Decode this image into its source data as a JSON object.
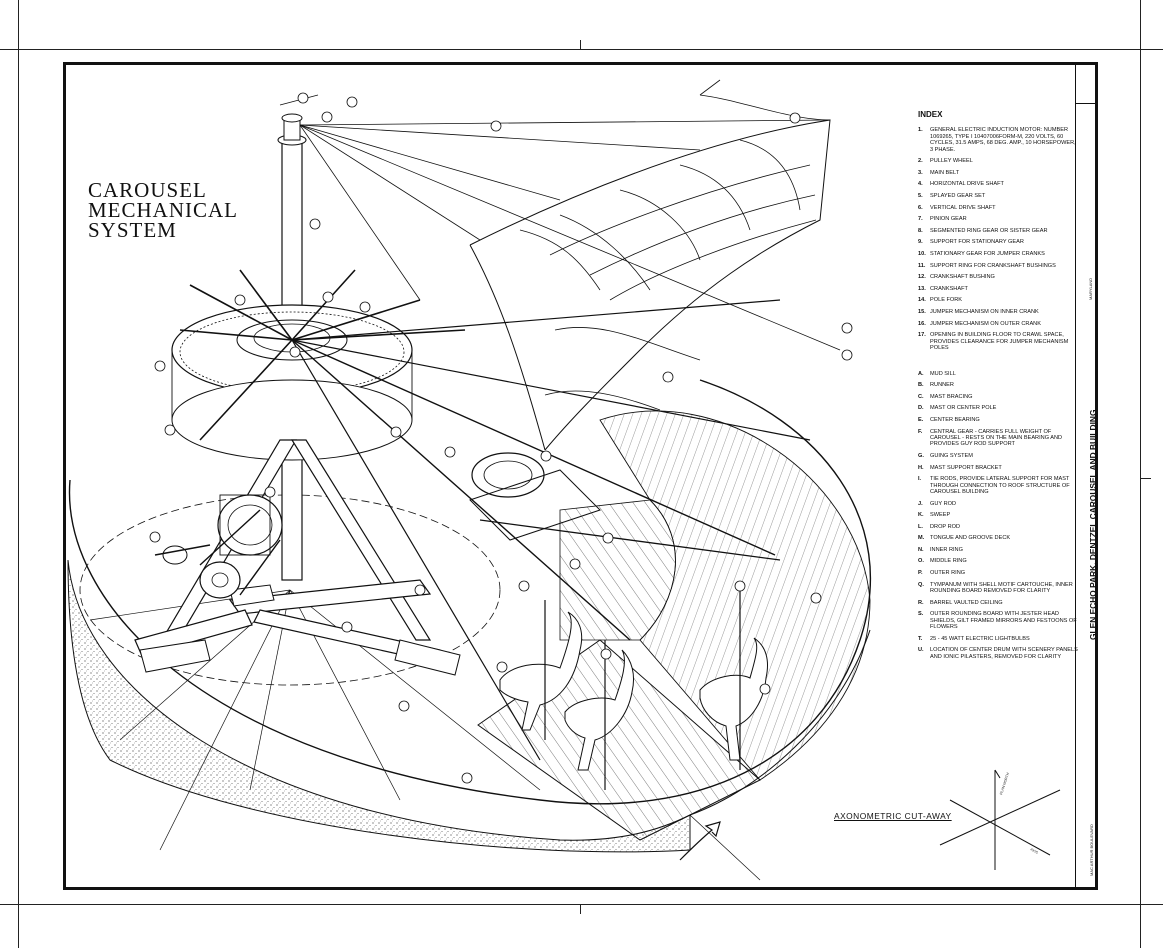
{
  "title": {
    "line1": "CAROUSEL",
    "line2": "MECHANICAL",
    "line3": "SYSTEM"
  },
  "index": {
    "heading": "INDEX",
    "numbered": [
      {
        "key": "1.",
        "text": "General electric induction motor: number 1069265, type I 10407006FORM-M, 220 volts, 60 cycles, 31.5 amps, 68 deg. amp., 10 horsepower, 3 phase."
      },
      {
        "key": "2.",
        "text": "Pulley wheel"
      },
      {
        "key": "3.",
        "text": "Main belt"
      },
      {
        "key": "4.",
        "text": "Horizontal drive shaft"
      },
      {
        "key": "5.",
        "text": "Splayed gear set"
      },
      {
        "key": "6.",
        "text": "Vertical drive shaft"
      },
      {
        "key": "7.",
        "text": "Pinion gear"
      },
      {
        "key": "8.",
        "text": "Segmented ring gear or sister gear"
      },
      {
        "key": "9.",
        "text": "Support for stationary gear"
      },
      {
        "key": "10.",
        "text": "Stationary gear for jumper cranks"
      },
      {
        "key": "11.",
        "text": "Support ring for crankshaft bushings"
      },
      {
        "key": "12.",
        "text": "Crankshaft bushing"
      },
      {
        "key": "13.",
        "text": "Crankshaft"
      },
      {
        "key": "14.",
        "text": "Pole fork"
      },
      {
        "key": "15.",
        "text": "Jumper mechanism on inner crank"
      },
      {
        "key": "16.",
        "text": "Jumper mechanism on outer crank"
      },
      {
        "key": "17.",
        "text": "Opening in building floor to crawl space, provides clearance for jumper mechanism poles"
      }
    ],
    "lettered": [
      {
        "key": "A.",
        "text": "Mud sill"
      },
      {
        "key": "B.",
        "text": "Runner"
      },
      {
        "key": "C.",
        "text": "Mast bracing"
      },
      {
        "key": "D.",
        "text": "Mast or center pole"
      },
      {
        "key": "E.",
        "text": "Center bearing"
      },
      {
        "key": "F.",
        "text": "Central gear - carries full weight of carousel - rests on the main bearing and provides guy rod support"
      },
      {
        "key": "G.",
        "text": "Guing system"
      },
      {
        "key": "H.",
        "text": "Mast support bracket"
      },
      {
        "key": "I.",
        "text": "Tie rods, provide lateral support for mast through connection to roof structure of carousel building"
      },
      {
        "key": "J.",
        "text": "Guy rod"
      },
      {
        "key": "K.",
        "text": "Sweep"
      },
      {
        "key": "L.",
        "text": "Drop rod"
      },
      {
        "key": "M.",
        "text": "Tongue and groove deck"
      },
      {
        "key": "N.",
        "text": "Inner ring"
      },
      {
        "key": "O.",
        "text": "Middle ring"
      },
      {
        "key": "P.",
        "text": "Outer ring"
      },
      {
        "key": "Q.",
        "text": "Tympanum with shell motif cartouche, inner rounding board removed for clarity"
      },
      {
        "key": "R.",
        "text": "Barrel vaulted ceiling"
      },
      {
        "key": "S.",
        "text": "Outer rounding board with jester head shields, gilt framed mirrors and festoons of flowers"
      },
      {
        "key": "T.",
        "text": "25 - 45 watt electric lightbulbs"
      },
      {
        "key": "U.",
        "text": "Location of center drum with scenery panels and ionic pilasters, removed for clarity"
      }
    ]
  },
  "title_block": {
    "project": "GLEN ECHO PARK, DENTZEL CAROUSEL AND BUILDING",
    "location": "MAC ARTHUR BOULEVARD",
    "state": "MARYLAND",
    "county": "MONTGOMERY COUNTY"
  },
  "axonometric_label": "AXONOMETRIC CUT-AWAY",
  "callouts": [
    "1",
    "2",
    "3",
    "4",
    "5",
    "6",
    "7",
    "8",
    "9",
    "10",
    "11",
    "12",
    "13",
    "14",
    "15",
    "16",
    "17",
    "A",
    "B",
    "C",
    "D",
    "E",
    "F",
    "G",
    "H",
    "I",
    "J",
    "K",
    "L",
    "M",
    "N",
    "O",
    "P",
    "Q",
    "R",
    "S",
    "T",
    "U"
  ]
}
